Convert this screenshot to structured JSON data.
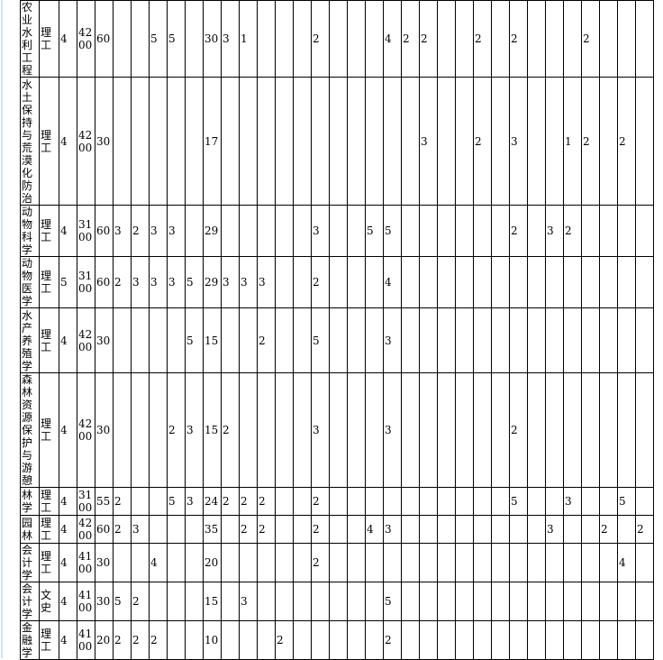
{
  "rows": [
    {
      "name": "农业水利工程",
      "type": "理工",
      "years": "4",
      "tuition": "4200",
      "cap": "60",
      "cells": [
        "",
        "",
        "5",
        "5",
        "",
        "30",
        "3",
        "1",
        "",
        "",
        "",
        "2",
        "",
        "",
        "",
        "4",
        "2",
        "2",
        "",
        "",
        "2",
        "",
        "2",
        "",
        "",
        "",
        "2",
        "",
        "",
        ""
      ]
    },
    {
      "name": "水土保持与荒漠化防治",
      "type": "理工",
      "years": "4",
      "tuition": "4200",
      "cap": "30",
      "cells": [
        "",
        "",
        "",
        "",
        "",
        "17",
        "",
        "",
        "",
        "",
        "",
        "",
        "",
        "",
        "",
        "",
        "",
        "3",
        "",
        "",
        "2",
        "",
        "3",
        "",
        "",
        "1",
        "2",
        "",
        "2",
        ""
      ]
    },
    {
      "name": "动物科学",
      "type": "理工",
      "years": "4",
      "tuition": "3100",
      "cap": "60",
      "cells": [
        "3",
        "2",
        "3",
        "3",
        "",
        "29",
        "",
        "",
        "",
        "",
        "",
        "3",
        "",
        "",
        "5",
        "5",
        "",
        "",
        "",
        "",
        "",
        "",
        "2",
        "",
        "3",
        "2",
        "",
        "",
        "",
        ""
      ]
    },
    {
      "name": "动物医学",
      "type": "理工",
      "years": "5",
      "tuition": "3100",
      "cap": "60",
      "cells": [
        "2",
        "3",
        "3",
        "3",
        "5",
        "29",
        "3",
        "3",
        "3",
        "",
        "",
        "2",
        "",
        "",
        "",
        "4",
        "",
        "",
        "",
        "",
        "",
        "",
        "",
        "",
        "",
        "",
        "",
        "",
        "",
        ""
      ]
    },
    {
      "name": "水产养殖学",
      "type": "理工",
      "years": "4",
      "tuition": "4200",
      "cap": "30",
      "cells": [
        "",
        "",
        "",
        "",
        "5",
        "15",
        "",
        "",
        "2",
        "",
        "",
        "5",
        "",
        "",
        "",
        "3",
        "",
        "",
        "",
        "",
        "",
        "",
        "",
        "",
        "",
        "",
        "",
        "",
        "",
        ""
      ]
    },
    {
      "name": "森林资源保护与游憩",
      "type": "理工",
      "years": "4",
      "tuition": "4200",
      "cap": "30",
      "cells": [
        "",
        "",
        "",
        "2",
        "3",
        "15",
        "2",
        "",
        "",
        "",
        "",
        "3",
        "",
        "",
        "",
        "3",
        "",
        "",
        "",
        "",
        "",
        "",
        "2",
        "",
        "",
        "",
        "",
        "",
        "",
        ""
      ]
    },
    {
      "name": "林学",
      "type": "理工",
      "years": "4",
      "tuition": "3100",
      "cap": "55",
      "cells": [
        "2",
        "",
        "",
        "5",
        "3",
        "24",
        "2",
        "2",
        "2",
        "",
        "",
        "2",
        "",
        "",
        "",
        "",
        "",
        "",
        "",
        "",
        "",
        "",
        "5",
        "",
        "",
        "3",
        "",
        "",
        "5",
        ""
      ]
    },
    {
      "name": "园林",
      "type": "理工",
      "years": "4",
      "tuition": "4200",
      "cap": "60",
      "cells": [
        "2",
        "3",
        "",
        "",
        "",
        "35",
        "",
        "2",
        "2",
        "",
        "",
        "2",
        "",
        "",
        "4",
        "3",
        "",
        "",
        "",
        "",
        "",
        "",
        "",
        "",
        "3",
        "",
        "",
        "2",
        "",
        "2"
      ]
    },
    {
      "name": "会计学",
      "type": "理工",
      "years": "4",
      "tuition": "4100",
      "cap": "30",
      "cells": [
        "",
        "",
        "4",
        "",
        "",
        "20",
        "",
        "",
        "",
        "",
        "",
        "2",
        "",
        "",
        "",
        "",
        "",
        "",
        "",
        "",
        "",
        "",
        "",
        "",
        "",
        "",
        "",
        "",
        "4",
        ""
      ]
    },
    {
      "name": "会计学",
      "type": "文史",
      "years": "4",
      "tuition": "4100",
      "cap": "30",
      "cells": [
        "5",
        "2",
        "",
        "",
        "",
        "15",
        "",
        "3",
        "",
        "",
        "",
        "",
        "",
        "",
        "",
        "5",
        "",
        "",
        "",
        "",
        "",
        "",
        "",
        "",
        "",
        "",
        "",
        "",
        "",
        ""
      ]
    },
    {
      "name": "金融学",
      "type": "理工",
      "years": "4",
      "tuition": "4100",
      "cap": "20",
      "cells": [
        "2",
        "2",
        "2",
        "",
        "",
        "10",
        "",
        "",
        "",
        "2",
        "",
        "",
        "",
        "",
        "",
        "2",
        "",
        "",
        "",
        "",
        "",
        "",
        "",
        "",
        "",
        "",
        "",
        "",
        "",
        ""
      ]
    }
  ]
}
